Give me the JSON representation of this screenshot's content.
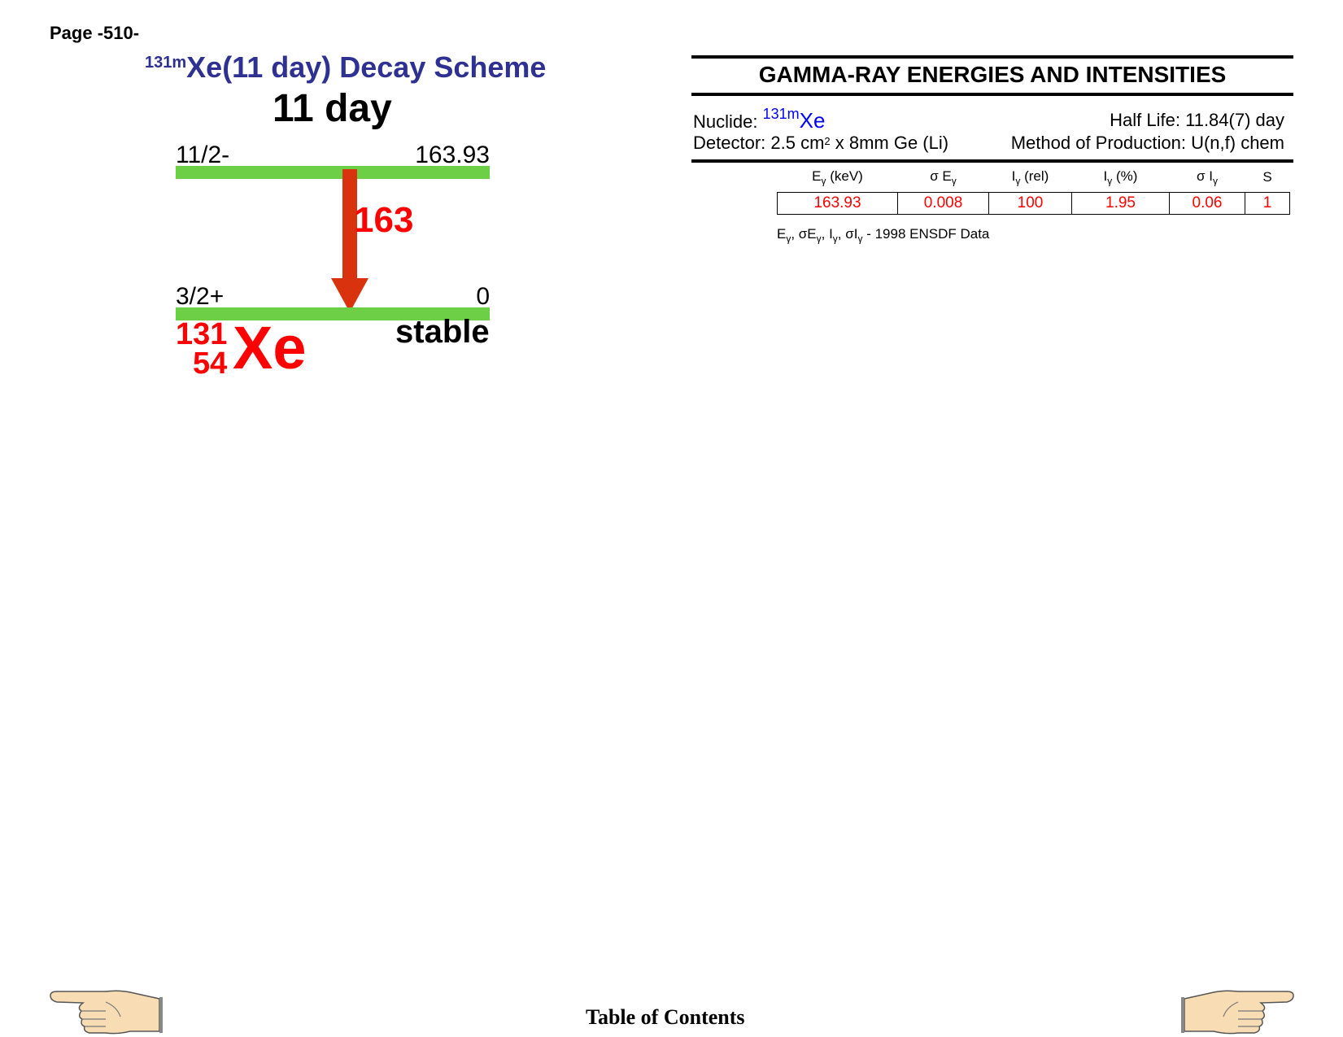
{
  "page_label": "Page -510-",
  "scheme": {
    "title_sup": "131m",
    "title_main": "Xe(11 day) Decay Scheme",
    "parent_halflife": "11 day",
    "upper_level": {
      "spin": "11/2-",
      "energy": "163.93"
    },
    "lower_level": {
      "spin": "3/2+",
      "energy": "0"
    },
    "gamma_label": "163",
    "daughter_mass": "131",
    "daughter_z": "54",
    "daughter_symbol": "Xe",
    "daughter_status": "stable",
    "colors": {
      "level": "#6ccf45",
      "arrow": "#d9320f",
      "title": "#2e3192",
      "label": "#ff0000"
    }
  },
  "table": {
    "heading": "GAMMA-RAY ENERGIES AND INTENSITIES",
    "nuclide_label": "Nuclide:",
    "nuclide_sup": "131m",
    "nuclide_symbol": "Xe",
    "halflife_text": "Half Life: 11.84(7) day",
    "detector_text_a": "Detector: 2.5 cm",
    "detector_sup": "2",
    "detector_text_b": " x 8mm Ge (Li)",
    "production_text": "Method of Production: U(n,f) chem",
    "col_headers": [
      {
        "main": "E",
        "sub": "γ",
        "tail": " (keV)"
      },
      {
        "main": "σ E",
        "sub": "γ",
        "tail": ""
      },
      {
        "main": "I",
        "sub": "γ",
        "tail": " (rel)"
      },
      {
        "main": "I",
        "sub": "γ",
        "tail": " (%)"
      },
      {
        "main": "σ I",
        "sub": "γ",
        "tail": ""
      },
      {
        "main": "S",
        "sub": "",
        "tail": ""
      }
    ],
    "rows": [
      [
        "163.93",
        "0.008",
        "100",
        "1.95",
        "0.06",
        "1"
      ]
    ],
    "footnote_source": "1998 ENSDF Data"
  },
  "nav": {
    "toc_label": "Table of Contents",
    "prev_icon": "pointing-hand-left-icon",
    "next_icon": "pointing-hand-right-icon"
  }
}
